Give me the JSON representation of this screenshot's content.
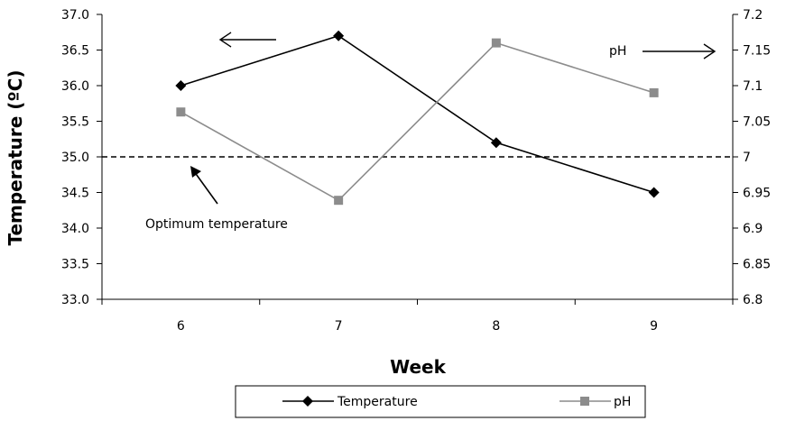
{
  "chart_data": {
    "type": "line",
    "title": "",
    "xlabel": "Week",
    "ylabel": "Temperature (ºC)",
    "y2label": "",
    "categories": [
      "6",
      "7",
      "8",
      "9"
    ],
    "ylim": [
      33.0,
      37.0
    ],
    "y_ticks": [
      "33.0",
      "33.5",
      "34.0",
      "34.5",
      "35.0",
      "35.5",
      "36.0",
      "36.5",
      "37.0"
    ],
    "y2lim": [
      6.8,
      7.2
    ],
    "y2_ticks": [
      "6.8",
      "6.85",
      "6.9",
      "6.95",
      "7",
      "7.05",
      "7.1",
      "7.15",
      "7.2"
    ],
    "series": [
      {
        "name": "Temperature",
        "axis": "left",
        "values": [
          36.0,
          36.7,
          35.2,
          34.5
        ],
        "color": "#000000",
        "marker": "diamond"
      },
      {
        "name": "pH",
        "axis": "right",
        "values": [
          7.063,
          6.939,
          7.16,
          7.09
        ],
        "color": "#8c8c8c",
        "marker": "square"
      }
    ],
    "reference_line": {
      "value": 35.0,
      "axis": "left",
      "style": "dashed",
      "label": "Optimum temperature"
    },
    "annotations": {
      "ph_label": "pH"
    },
    "legend": {
      "placement": "bottom",
      "entries": [
        "Temperature",
        "pH"
      ]
    },
    "grid": false
  }
}
